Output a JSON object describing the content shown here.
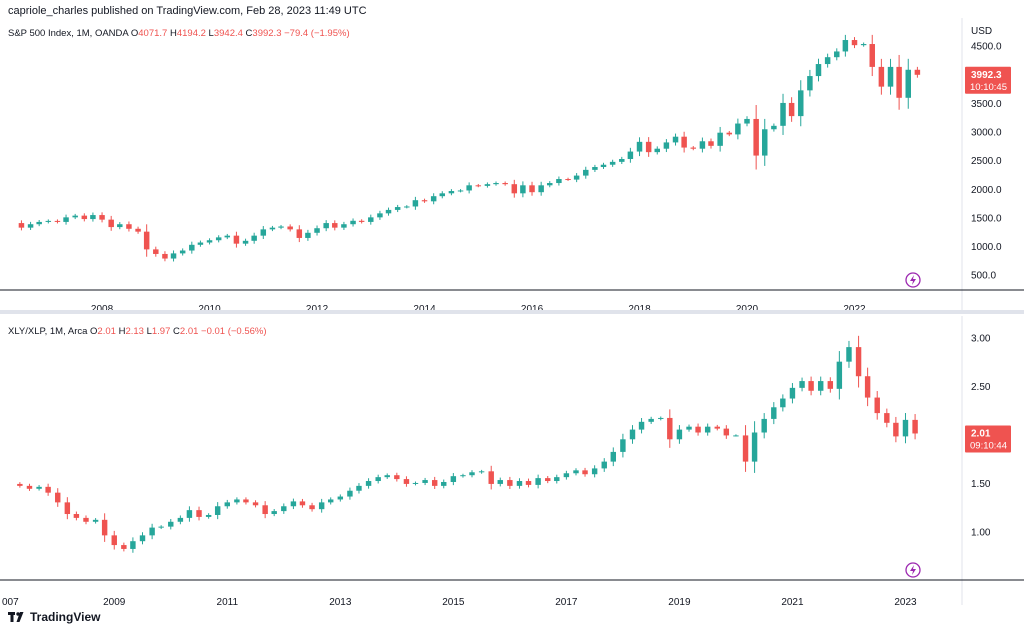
{
  "header": {
    "published": "capriole_charles published on TradingView.com, Feb 28, 2023 11:49 UTC"
  },
  "footer": {
    "brand": "TradingView"
  },
  "colors": {
    "up": "#26a69a",
    "down": "#ef5350",
    "axis": "#131722",
    "grid": "#e0e3eb"
  },
  "chart_data": [
    {
      "type": "candlestick",
      "legend": {
        "symbol": "S&P 500 Index, 1M, OANDA",
        "o_label": "O",
        "o": "4071.7",
        "h_label": "H",
        "h": "4194.2",
        "l_label": "L",
        "l": "3942.4",
        "c_label": "C",
        "c": "3992.3",
        "change": "−79.4 (−1.95%)"
      },
      "currency": "USD",
      "y_ticks": [
        "500.0",
        "1000.0",
        "1500.0",
        "2000.0",
        "2500.0",
        "3000.0",
        "3500.0",
        "4500.0"
      ],
      "x_ticks": [
        "2008",
        "2010",
        "2012",
        "2014",
        "2016",
        "2018",
        "2020",
        "2022"
      ],
      "last_price": "3992.3",
      "countdown": "10:10:45",
      "ylim": [
        230,
        4950
      ],
      "x_start": 2006.25,
      "x_end": 2024.0,
      "series": [
        [
          2006.33,
          1400
        ],
        [
          2006.5,
          1320
        ],
        [
          2006.67,
          1380
        ],
        [
          2006.83,
          1420
        ],
        [
          2007.0,
          1438
        ],
        [
          2007.17,
          1420
        ],
        [
          2007.33,
          1500
        ],
        [
          2007.5,
          1530
        ],
        [
          2007.67,
          1470
        ],
        [
          2007.83,
          1540
        ],
        [
          2008.0,
          1460
        ],
        [
          2008.17,
          1330
        ],
        [
          2008.33,
          1380
        ],
        [
          2008.5,
          1300
        ],
        [
          2008.67,
          1250
        ],
        [
          2008.83,
          940
        ],
        [
          2009.0,
          860
        ],
        [
          2009.17,
          780
        ],
        [
          2009.33,
          870
        ],
        [
          2009.5,
          920
        ],
        [
          2009.67,
          1020
        ],
        [
          2009.83,
          1060
        ],
        [
          2010.0,
          1100
        ],
        [
          2010.17,
          1150
        ],
        [
          2010.33,
          1180
        ],
        [
          2010.5,
          1040
        ],
        [
          2010.67,
          1090
        ],
        [
          2010.83,
          1180
        ],
        [
          2011.0,
          1290
        ],
        [
          2011.17,
          1320
        ],
        [
          2011.33,
          1340
        ],
        [
          2011.5,
          1290
        ],
        [
          2011.67,
          1140
        ],
        [
          2011.83,
          1230
        ],
        [
          2012.0,
          1310
        ],
        [
          2012.17,
          1400
        ],
        [
          2012.33,
          1320
        ],
        [
          2012.5,
          1380
        ],
        [
          2012.67,
          1440
        ],
        [
          2012.83,
          1420
        ],
        [
          2013.0,
          1500
        ],
        [
          2013.17,
          1570
        ],
        [
          2013.33,
          1630
        ],
        [
          2013.5,
          1680
        ],
        [
          2013.67,
          1690
        ],
        [
          2013.83,
          1800
        ],
        [
          2014.0,
          1780
        ],
        [
          2014.17,
          1870
        ],
        [
          2014.33,
          1920
        ],
        [
          2014.5,
          1960
        ],
        [
          2014.67,
          1970
        ],
        [
          2014.83,
          2060
        ],
        [
          2015.0,
          2050
        ],
        [
          2015.17,
          2080
        ],
        [
          2015.33,
          2100
        ],
        [
          2015.5,
          2080
        ],
        [
          2015.67,
          1920
        ],
        [
          2015.83,
          2060
        ],
        [
          2016.0,
          1940
        ],
        [
          2016.17,
          2060
        ],
        [
          2016.33,
          2100
        ],
        [
          2016.5,
          2170
        ],
        [
          2016.67,
          2160
        ],
        [
          2016.83,
          2230
        ],
        [
          2017.0,
          2330
        ],
        [
          2017.17,
          2380
        ],
        [
          2017.33,
          2420
        ],
        [
          2017.5,
          2470
        ],
        [
          2017.67,
          2520
        ],
        [
          2017.83,
          2650
        ],
        [
          2018.0,
          2820
        ],
        [
          2018.17,
          2640
        ],
        [
          2018.33,
          2700
        ],
        [
          2018.5,
          2810
        ],
        [
          2018.67,
          2910
        ],
        [
          2018.83,
          2720
        ],
        [
          2019.0,
          2700
        ],
        [
          2019.17,
          2830
        ],
        [
          2019.33,
          2750
        ],
        [
          2019.5,
          2980
        ],
        [
          2019.67,
          2950
        ],
        [
          2019.83,
          3140
        ],
        [
          2020.0,
          3220
        ],
        [
          2020.17,
          2580
        ],
        [
          2020.33,
          3040
        ],
        [
          2020.5,
          3100
        ],
        [
          2020.67,
          3500
        ],
        [
          2020.83,
          3270
        ],
        [
          2021.0,
          3720
        ],
        [
          2021.17,
          3970
        ],
        [
          2021.33,
          4180
        ],
        [
          2021.5,
          4300
        ],
        [
          2021.67,
          4400
        ],
        [
          2021.83,
          4600
        ],
        [
          2022.0,
          4510
        ],
        [
          2022.17,
          4530
        ],
        [
          2022.33,
          4130
        ],
        [
          2022.5,
          3785
        ],
        [
          2022.67,
          4130
        ],
        [
          2022.83,
          3590
        ],
        [
          2023.0,
          4080
        ],
        [
          2023.17,
          3992
        ]
      ]
    },
    {
      "type": "candlestick",
      "legend": {
        "symbol": "XLY/XLP, 1M, Arca",
        "o_label": "O",
        "o": "2.01",
        "h_label": "H",
        "h": "2.13",
        "l_label": "L",
        "l": "1.97",
        "c_label": "C",
        "c": "2.01",
        "change": "−0.01 (−0.56%)"
      },
      "y_ticks": [
        "1.00",
        "1.50",
        "2.50",
        "3.00"
      ],
      "x_ticks": [
        "007",
        "2009",
        "2011",
        "2013",
        "2015",
        "2017",
        "2019",
        "2021",
        "2023"
      ],
      "last_price": "2.01",
      "countdown": "09:10:44",
      "ylim": [
        0.5,
        3.2
      ],
      "x_start": 2007.12,
      "x_end": 2024.0,
      "series": [
        [
          2007.17,
          1.49
        ],
        [
          2007.33,
          1.47
        ],
        [
          2007.5,
          1.44
        ],
        [
          2007.67,
          1.46
        ],
        [
          2007.83,
          1.4
        ],
        [
          2008.0,
          1.3
        ],
        [
          2008.17,
          1.18
        ],
        [
          2008.33,
          1.14
        ],
        [
          2008.5,
          1.1
        ],
        [
          2008.67,
          1.12
        ],
        [
          2008.83,
          0.96
        ],
        [
          2009.0,
          0.86
        ],
        [
          2009.17,
          0.82
        ],
        [
          2009.33,
          0.9
        ],
        [
          2009.5,
          0.96
        ],
        [
          2009.67,
          1.04
        ],
        [
          2009.83,
          1.05
        ],
        [
          2010.0,
          1.1
        ],
        [
          2010.17,
          1.14
        ],
        [
          2010.33,
          1.22
        ],
        [
          2010.5,
          1.15
        ],
        [
          2010.67,
          1.17
        ],
        [
          2010.83,
          1.26
        ],
        [
          2011.0,
          1.3
        ],
        [
          2011.17,
          1.33
        ],
        [
          2011.33,
          1.3
        ],
        [
          2011.5,
          1.27
        ],
        [
          2011.67,
          1.18
        ],
        [
          2011.83,
          1.21
        ],
        [
          2012.0,
          1.26
        ],
        [
          2012.17,
          1.31
        ],
        [
          2012.33,
          1.27
        ],
        [
          2012.5,
          1.23
        ],
        [
          2012.67,
          1.3
        ],
        [
          2012.83,
          1.33
        ],
        [
          2013.0,
          1.36
        ],
        [
          2013.17,
          1.42
        ],
        [
          2013.33,
          1.47
        ],
        [
          2013.5,
          1.52
        ],
        [
          2013.67,
          1.56
        ],
        [
          2013.83,
          1.58
        ],
        [
          2014.0,
          1.54
        ],
        [
          2014.17,
          1.49
        ],
        [
          2014.33,
          1.5
        ],
        [
          2014.5,
          1.53
        ],
        [
          2014.67,
          1.47
        ],
        [
          2014.83,
          1.51
        ],
        [
          2015.0,
          1.57
        ],
        [
          2015.17,
          1.58
        ],
        [
          2015.33,
          1.61
        ],
        [
          2015.5,
          1.62
        ],
        [
          2015.67,
          1.49
        ],
        [
          2015.83,
          1.53
        ],
        [
          2016.0,
          1.47
        ],
        [
          2016.17,
          1.52
        ],
        [
          2016.33,
          1.48
        ],
        [
          2016.5,
          1.55
        ],
        [
          2016.67,
          1.52
        ],
        [
          2016.83,
          1.56
        ],
        [
          2017.0,
          1.6
        ],
        [
          2017.17,
          1.63
        ],
        [
          2017.33,
          1.59
        ],
        [
          2017.5,
          1.65
        ],
        [
          2017.67,
          1.72
        ],
        [
          2017.83,
          1.82
        ],
        [
          2018.0,
          1.95
        ],
        [
          2018.17,
          2.05
        ],
        [
          2018.33,
          2.13
        ],
        [
          2018.5,
          2.16
        ],
        [
          2018.67,
          2.17
        ],
        [
          2018.83,
          1.95
        ],
        [
          2019.0,
          2.05
        ],
        [
          2019.17,
          2.08
        ],
        [
          2019.33,
          2.02
        ],
        [
          2019.5,
          2.08
        ],
        [
          2019.67,
          2.06
        ],
        [
          2019.83,
          1.99
        ],
        [
          2020.0,
          1.99
        ],
        [
          2020.17,
          1.72
        ],
        [
          2020.33,
          2.02
        ],
        [
          2020.5,
          2.16
        ],
        [
          2020.67,
          2.28
        ],
        [
          2020.83,
          2.37
        ],
        [
          2021.0,
          2.48
        ],
        [
          2021.17,
          2.55
        ],
        [
          2021.33,
          2.45
        ],
        [
          2021.5,
          2.55
        ],
        [
          2021.67,
          2.47
        ],
        [
          2021.83,
          2.75
        ],
        [
          2022.0,
          2.9
        ],
        [
          2022.17,
          2.6
        ],
        [
          2022.33,
          2.38
        ],
        [
          2022.5,
          2.22
        ],
        [
          2022.67,
          2.12
        ],
        [
          2022.83,
          1.98
        ],
        [
          2023.0,
          2.15
        ],
        [
          2023.17,
          2.01
        ]
      ]
    }
  ]
}
